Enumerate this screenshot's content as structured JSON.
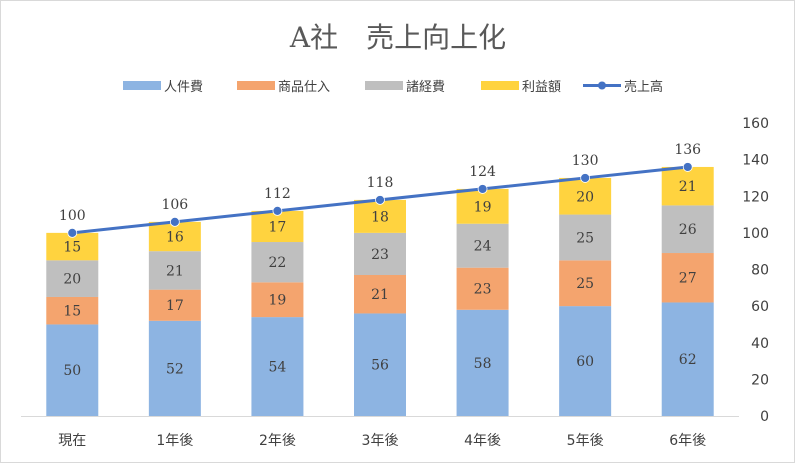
{
  "chart_data": {
    "type": "bar",
    "stacked": true,
    "title": "A社　売上向上化",
    "categories": [
      "現在",
      "1年後",
      "2年後",
      "3年後",
      "4年後",
      "5年後",
      "6年後"
    ],
    "series": [
      {
        "name": "人件費",
        "color": "#8db4e2",
        "values": [
          50,
          52,
          54,
          56,
          58,
          60,
          62
        ]
      },
      {
        "name": "商品仕入",
        "color": "#f4a46e",
        "values": [
          15,
          17,
          19,
          21,
          23,
          25,
          27
        ]
      },
      {
        "name": "諸経費",
        "color": "#bfbfbf",
        "values": [
          20,
          21,
          22,
          23,
          24,
          25,
          26
        ]
      },
      {
        "name": "利益額",
        "color": "#ffd33f",
        "values": [
          15,
          16,
          17,
          18,
          19,
          20,
          21
        ]
      }
    ],
    "line_series": {
      "name": "売上高",
      "type": "line",
      "color": "#4472c4",
      "values": [
        100,
        106,
        112,
        118,
        124,
        130,
        136
      ]
    },
    "ylim": [
      0,
      160
    ],
    "yticks": [
      0,
      20,
      40,
      60,
      80,
      100,
      120,
      140,
      160
    ],
    "y_axis_side": "right",
    "grid": false,
    "legend": "top"
  }
}
